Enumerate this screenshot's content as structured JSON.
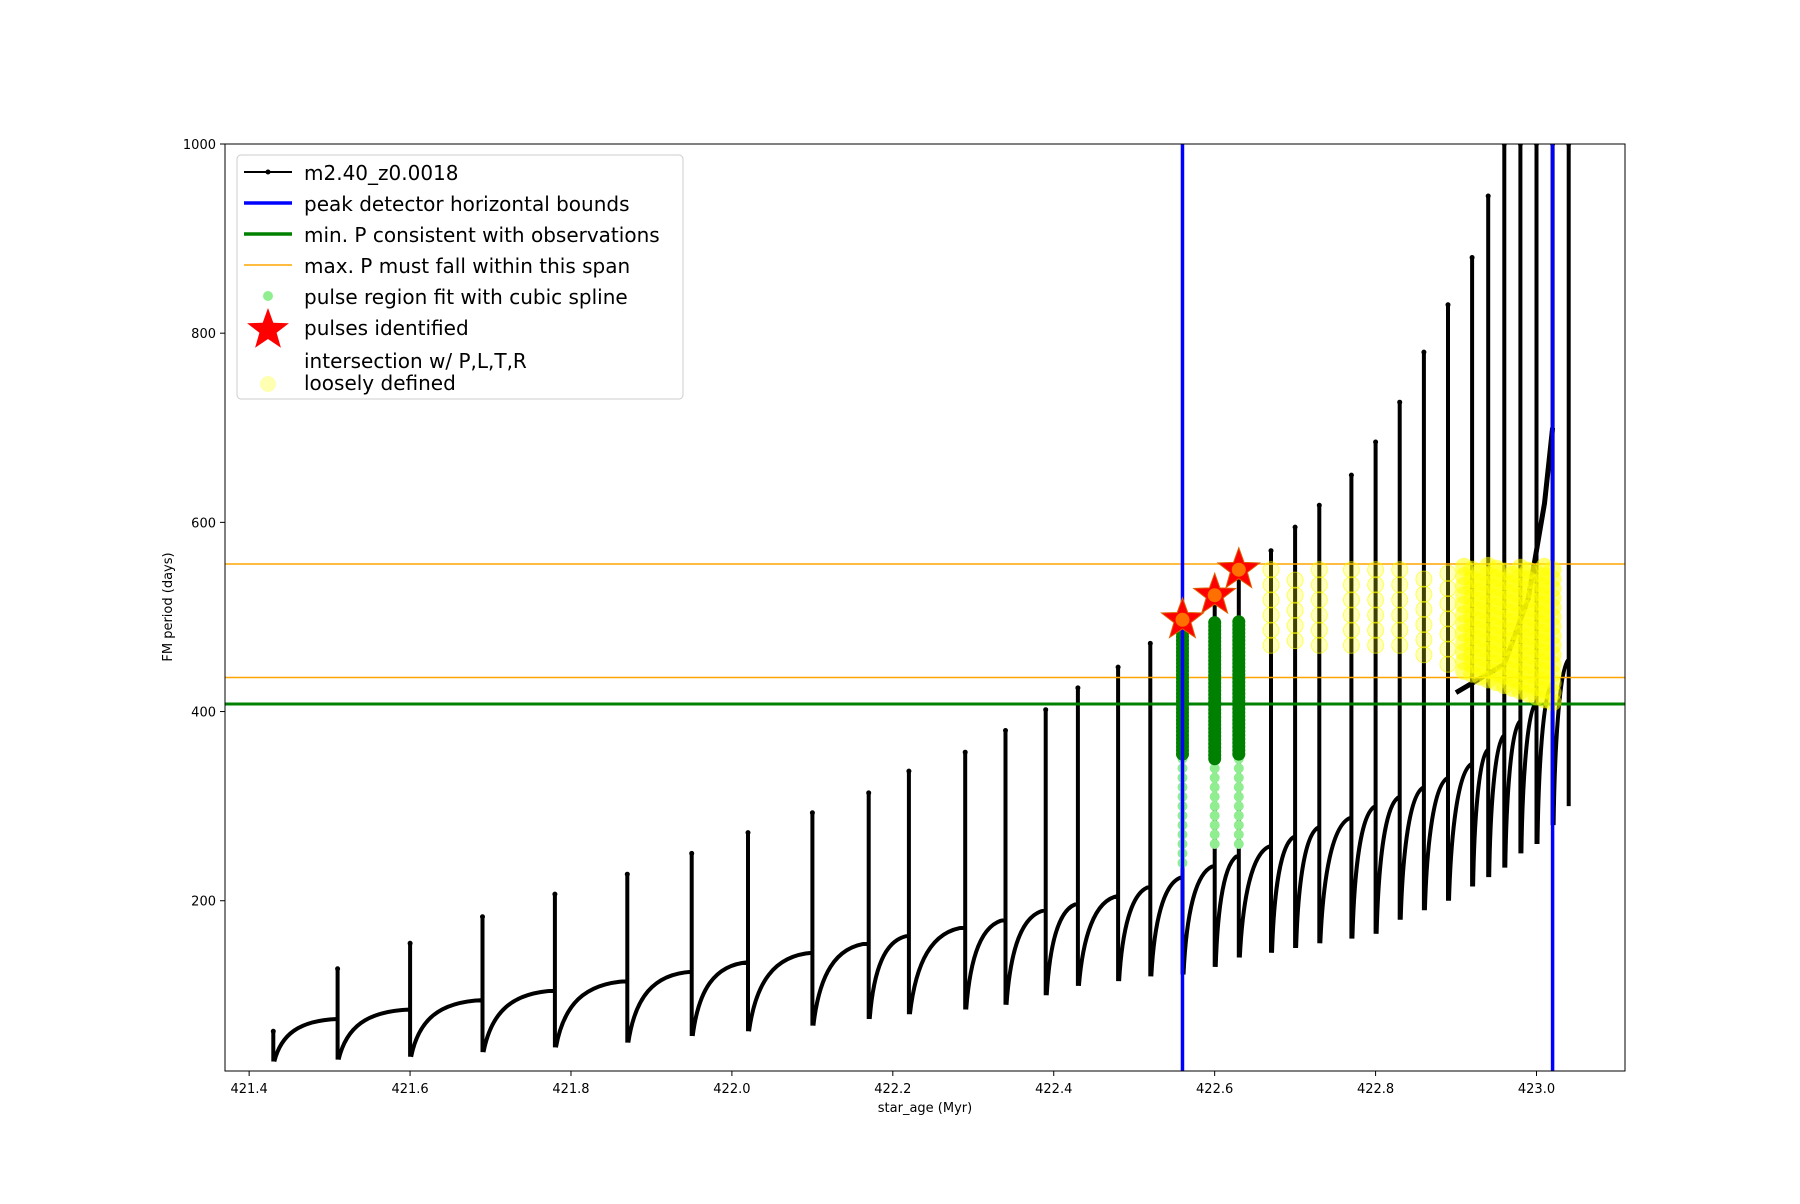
{
  "chart_data": {
    "type": "line",
    "title": "",
    "xlabel": "star_age (Myr)",
    "ylabel": "FM period (days)",
    "xlim": [
      421.37,
      423.11
    ],
    "ylim": [
      20,
      1000
    ],
    "xticks": [
      421.4,
      421.6,
      421.8,
      422.0,
      422.2,
      422.4,
      422.6,
      422.8,
      423.0
    ],
    "xtick_labels": [
      "421.4",
      "421.6",
      "421.8",
      "422.0",
      "422.2",
      "422.4",
      "422.6",
      "422.8",
      "423.0"
    ],
    "yticks": [
      200,
      400,
      600,
      800,
      1000
    ],
    "ytick_labels": [
      "200",
      "400",
      "600",
      "800",
      "1000"
    ],
    "grid": false,
    "legend_position": "upper-left",
    "colors": {
      "model": "#000000",
      "bounds": "#0000ff",
      "min_p": "#008000",
      "max_p_span": "#ffa500",
      "spline_light": "#90ee90",
      "spline_dark": "#008000",
      "pulses": "#ff0000",
      "intersection": "#ffff00"
    },
    "series": [
      {
        "name": "m2.40_z0.0018",
        "style": "black line with small dot markers",
        "pulses": [
          {
            "x": 421.43,
            "top": 62,
            "min": 30,
            "end": 75
          },
          {
            "x": 421.51,
            "top": 128,
            "min": 32,
            "end": 85
          },
          {
            "x": 421.6,
            "top": 155,
            "min": 35,
            "end": 95
          },
          {
            "x": 421.69,
            "top": 183,
            "min": 40,
            "end": 105
          },
          {
            "x": 421.78,
            "top": 207,
            "min": 45,
            "end": 115
          },
          {
            "x": 421.87,
            "top": 228,
            "min": 50,
            "end": 125
          },
          {
            "x": 421.95,
            "top": 250,
            "min": 57,
            "end": 135
          },
          {
            "x": 422.02,
            "top": 272,
            "min": 62,
            "end": 145
          },
          {
            "x": 422.1,
            "top": 293,
            "min": 68,
            "end": 155
          },
          {
            "x": 422.17,
            "top": 314,
            "min": 75,
            "end": 163
          },
          {
            "x": 422.22,
            "top": 337,
            "min": 80,
            "end": 172
          },
          {
            "x": 422.29,
            "top": 357,
            "min": 85,
            "end": 180
          },
          {
            "x": 422.34,
            "top": 380,
            "min": 90,
            "end": 190
          },
          {
            "x": 422.39,
            "top": 402,
            "min": 100,
            "end": 197
          },
          {
            "x": 422.43,
            "top": 425,
            "min": 110,
            "end": 205
          },
          {
            "x": 422.48,
            "top": 447,
            "min": 115,
            "end": 215
          },
          {
            "x": 422.52,
            "top": 472,
            "min": 120,
            "end": 225
          },
          {
            "x": 422.56,
            "top": 495,
            "min": 122,
            "end": 237
          },
          {
            "x": 422.6,
            "top": 520,
            "min": 130,
            "end": 248
          },
          {
            "x": 422.63,
            "top": 545,
            "min": 140,
            "end": 258
          },
          {
            "x": 422.67,
            "top": 570,
            "min": 145,
            "end": 268
          },
          {
            "x": 422.7,
            "top": 595,
            "min": 150,
            "end": 278
          },
          {
            "x": 422.73,
            "top": 618,
            "min": 155,
            "end": 288
          },
          {
            "x": 422.77,
            "top": 650,
            "min": 160,
            "end": 300
          },
          {
            "x": 422.8,
            "top": 685,
            "min": 165,
            "end": 310
          },
          {
            "x": 422.83,
            "top": 727,
            "min": 180,
            "end": 320
          },
          {
            "x": 422.86,
            "top": 780,
            "min": 190,
            "end": 330
          },
          {
            "x": 422.89,
            "top": 830,
            "min": 200,
            "end": 345
          },
          {
            "x": 422.92,
            "top": 880,
            "min": 215,
            "end": 360
          },
          {
            "x": 422.94,
            "top": 945,
            "min": 225,
            "end": 375
          },
          {
            "x": 422.96,
            "top": 1000,
            "min": 235,
            "end": 390
          },
          {
            "x": 422.98,
            "top": 1000,
            "min": 250,
            "end": 410
          },
          {
            "x": 423.0,
            "top": 1000,
            "min": 260,
            "end": 430
          },
          {
            "x": 423.02,
            "top": 1000,
            "min": 280,
            "end": 455
          },
          {
            "x": 423.04,
            "top": 1000,
            "min": 300,
            "end": 480
          }
        ],
        "final_rise": {
          "x": [
            422.9,
            422.96,
            422.99,
            423.01,
            423.02
          ],
          "y": [
            420,
            450,
            520,
            620,
            700
          ]
        }
      },
      {
        "name": "peak detector horizontal bounds",
        "style": "vertical blue lines",
        "x_values": [
          422.56,
          423.02
        ]
      },
      {
        "name": "min. P consistent with observations",
        "style": "horizontal green line",
        "y_value": 408
      },
      {
        "name": "max. P must fall within this span",
        "style": "horizontal orange lines",
        "y_values": [
          436,
          556
        ]
      },
      {
        "name": "pulse region fit with cubic spline",
        "style": "green dots",
        "columns": [
          {
            "x": 422.56,
            "light_range": [
              240,
              360
            ],
            "dark_range": [
              355,
              495
            ]
          },
          {
            "x": 422.6,
            "light_range": [
              260,
              360
            ],
            "dark_range": [
              350,
              495
            ]
          },
          {
            "x": 422.63,
            "light_range": [
              260,
              360
            ],
            "dark_range": [
              355,
              495
            ]
          }
        ]
      },
      {
        "name": "pulses identified",
        "style": "red stars",
        "points": [
          {
            "x": 422.56,
            "y": 497
          },
          {
            "x": 422.6,
            "y": 523
          },
          {
            "x": 422.63,
            "y": 550
          }
        ]
      },
      {
        "name": "intersection w/ P,L,T,R\nloosely defined",
        "style": "yellow translucent circles",
        "clusters": [
          {
            "x": 422.67,
            "y_range": [
              470,
              550
            ]
          },
          {
            "x": 422.7,
            "y_range": [
              475,
              550
            ]
          },
          {
            "x": 422.73,
            "y_range": [
              470,
              555
            ]
          },
          {
            "x": 422.77,
            "y_range": [
              470,
              555
            ]
          },
          {
            "x": 422.8,
            "y_range": [
              470,
              555
            ]
          },
          {
            "x": 422.83,
            "y_range": [
              470,
              555
            ]
          },
          {
            "x": 422.86,
            "y_range": [
              460,
              555
            ]
          },
          {
            "x": 422.89,
            "y_range": [
              450,
              555
            ]
          }
        ],
        "dense_region": {
          "x_range": [
            422.91,
            423.02
          ],
          "y_range": [
            410,
            555
          ]
        }
      }
    ],
    "legend": {
      "entries": [
        {
          "label": "m2.40_z0.0018",
          "marker": "line-dot",
          "color": "#000000"
        },
        {
          "label": "peak detector horizontal bounds",
          "marker": "line-thick",
          "color": "#0000ff"
        },
        {
          "label": "min. P consistent with observations",
          "marker": "line-thick",
          "color": "#008000"
        },
        {
          "label": "max. P must fall within this span",
          "marker": "line-thin",
          "color": "#ffa500"
        },
        {
          "label": "pulse region fit with cubic spline",
          "marker": "dot",
          "color": "#90ee90"
        },
        {
          "label": "pulses identified",
          "marker": "star",
          "color": "#ff0000"
        },
        {
          "label": "intersection w/ P,L,T,R",
          "label2": "loosely defined",
          "marker": "circle",
          "color": "#ffff00"
        }
      ]
    }
  }
}
